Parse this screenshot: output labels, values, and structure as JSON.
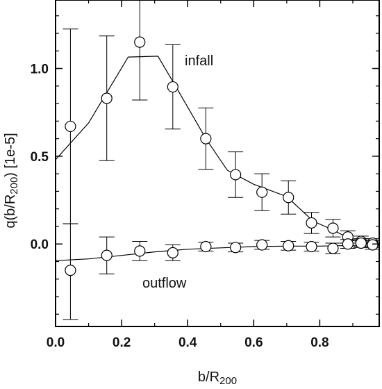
{
  "chart_data": {
    "type": "scatter",
    "xlabel": "b/R",
    "xlabel_sub": "200",
    "ylabel_pre": "q(b/R",
    "ylabel_sub": "200",
    "ylabel_post": ") [1e-5]",
    "xlim": [
      0.0,
      0.98
    ],
    "ylim": [
      -0.47,
      1.39
    ],
    "xticks": [
      0.0,
      0.2,
      0.4,
      0.6,
      0.8
    ],
    "xtick_labels": [
      "0.0",
      "0.2",
      "0.4",
      "0.6",
      "0.8"
    ],
    "yticks": [
      0.0,
      0.5,
      1.0
    ],
    "ytick_labels": [
      "0.0",
      "0.5",
      "1.0"
    ],
    "grid": false,
    "annotations": [
      {
        "text": "infall",
        "series": "infall"
      },
      {
        "text": "outflow",
        "series": "outflow"
      }
    ],
    "series": [
      {
        "points": [
          {
            "x": 0.045,
            "y": 0.67,
            "lo": 0.115,
            "hi": 1.225
          },
          {
            "x": 0.155,
            "y": 0.83,
            "lo": 0.475,
            "hi": 1.185
          },
          {
            "x": 0.255,
            "y": 1.15,
            "lo": 0.82,
            "hi": 1.48
          },
          {
            "x": 0.355,
            "y": 0.895,
            "lo": 0.655,
            "hi": 1.135
          },
          {
            "x": 0.455,
            "y": 0.6,
            "lo": 0.425,
            "hi": 0.775
          },
          {
            "x": 0.545,
            "y": 0.395,
            "lo": 0.265,
            "hi": 0.525
          },
          {
            "x": 0.625,
            "y": 0.295,
            "lo": 0.19,
            "hi": 0.4
          },
          {
            "x": 0.705,
            "y": 0.265,
            "lo": 0.17,
            "hi": 0.36
          },
          {
            "x": 0.775,
            "y": 0.12,
            "lo": 0.06,
            "hi": 0.18
          },
          {
            "x": 0.84,
            "y": 0.09,
            "lo": 0.04,
            "hi": 0.14
          },
          {
            "x": 0.885,
            "y": 0.04,
            "lo": 0.005,
            "hi": 0.075
          },
          {
            "x": 0.925,
            "y": 0.015,
            "lo": -0.015,
            "hi": 0.045
          },
          {
            "x": 0.96,
            "y": 0.005,
            "lo": -0.02,
            "hi": 0.03
          }
        ],
        "curve": [
          [
            0.0,
            0.48
          ],
          [
            0.1,
            0.69
          ],
          [
            0.22,
            1.065
          ],
          [
            0.31,
            1.07
          ],
          [
            0.36,
            0.91
          ],
          [
            0.455,
            0.6
          ],
          [
            0.52,
            0.42
          ],
          [
            0.6,
            0.34
          ],
          [
            0.7,
            0.27
          ],
          [
            0.78,
            0.13
          ],
          [
            0.84,
            0.08
          ],
          [
            0.9,
            0.02
          ],
          [
            0.98,
            -0.01
          ]
        ]
      },
      {
        "points": [
          {
            "x": 0.045,
            "y": -0.15,
            "lo": -0.43,
            "hi": 0.115
          },
          {
            "x": 0.155,
            "y": -0.065,
            "lo": -0.17,
            "hi": 0.04
          },
          {
            "x": 0.255,
            "y": -0.04,
            "lo": -0.095,
            "hi": 0.015
          },
          {
            "x": 0.355,
            "y": -0.05,
            "lo": -0.095,
            "hi": -0.005
          },
          {
            "x": 0.455,
            "y": -0.015,
            "lo": -0.04,
            "hi": 0.01
          },
          {
            "x": 0.545,
            "y": -0.02,
            "lo": -0.045,
            "hi": 0.005
          },
          {
            "x": 0.625,
            "y": -0.005,
            "lo": -0.03,
            "hi": 0.02
          },
          {
            "x": 0.705,
            "y": -0.01,
            "lo": -0.035,
            "hi": 0.015
          },
          {
            "x": 0.775,
            "y": -0.015,
            "lo": -0.04,
            "hi": 0.01
          },
          {
            "x": 0.84,
            "y": -0.025,
            "lo": -0.055,
            "hi": 0.005
          },
          {
            "x": 0.885,
            "y": 0.0,
            "lo": -0.025,
            "hi": 0.025
          },
          {
            "x": 0.925,
            "y": 0.005,
            "lo": -0.02,
            "hi": 0.03
          },
          {
            "x": 0.96,
            "y": -0.005,
            "lo": -0.03,
            "hi": 0.02
          }
        ],
        "curve": [
          [
            0.0,
            -0.095
          ],
          [
            0.1,
            -0.085
          ],
          [
            0.2,
            -0.065
          ],
          [
            0.3,
            -0.045
          ],
          [
            0.4,
            -0.03
          ],
          [
            0.5,
            -0.022
          ],
          [
            0.6,
            -0.015
          ],
          [
            0.7,
            -0.012
          ],
          [
            0.8,
            -0.012
          ],
          [
            0.9,
            -0.008
          ],
          [
            0.98,
            -0.005
          ]
        ]
      }
    ]
  }
}
